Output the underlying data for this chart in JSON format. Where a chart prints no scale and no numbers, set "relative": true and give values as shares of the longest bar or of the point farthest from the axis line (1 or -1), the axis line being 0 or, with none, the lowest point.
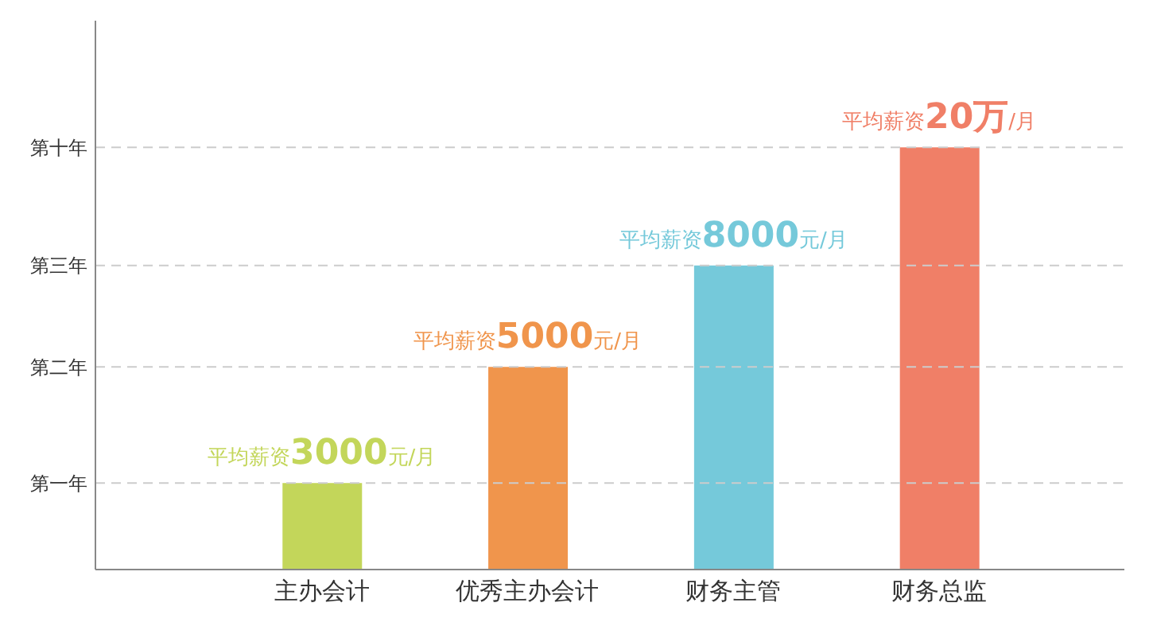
{
  "chart_data": {
    "type": "bar",
    "categories": [
      "主办会计",
      "优秀主办会计",
      "财务主管",
      "财务总监"
    ],
    "values": [
      0.205,
      0.48,
      0.72,
      1.0
    ],
    "colors": [
      "#c3d65a",
      "#f0954c",
      "#75c9da",
      "#f07f67"
    ],
    "annotations": [
      {
        "text": "平均薪资3000元/月",
        "x": "主办会计",
        "y": 0.205
      },
      {
        "text": "平均薪资5000元/月",
        "x": "优秀主办会计",
        "y": 0.48
      },
      {
        "text": "平均薪资8000元/月",
        "x": "财务主管",
        "y": 0.72
      },
      {
        "text": "平均薪资20万/月",
        "x": "财务总监",
        "y": 1.0
      }
    ],
    "relative": true,
    "ref_lines": [
      {
        "axis": "y",
        "value": 0.205,
        "label": "第一年",
        "color": "#cccccc",
        "line_style": "dashed"
      },
      {
        "axis": "y",
        "value": 0.48,
        "label": "第二年",
        "color": "#cccccc",
        "line_style": "dashed"
      },
      {
        "axis": "y",
        "value": 0.72,
        "label": "第三年",
        "color": "#cccccc",
        "line_style": "dashed"
      },
      {
        "axis": "y",
        "value": 1.0,
        "label": "第十年",
        "color": "#cccccc",
        "line_style": "dashed"
      }
    ],
    "legend": false
  }
}
